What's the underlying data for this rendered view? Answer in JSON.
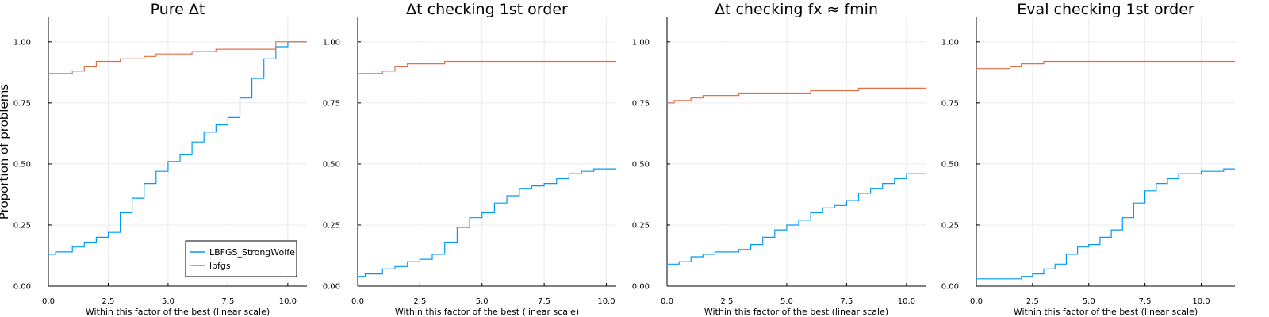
{
  "chart_data": [
    {
      "type": "line",
      "title": "Pure Δt",
      "ylabel": "Proportion of problems",
      "xlabel": "Within this factor of the best (linear scale)",
      "xlim": [
        0,
        10.8
      ],
      "ylim": [
        0,
        1.1
      ],
      "xticks": [
        "0.0",
        "2.5",
        "5.0",
        "7.5",
        "10.0"
      ],
      "yticks": [
        "0.00",
        "0.25",
        "0.50",
        "0.75",
        "1.00"
      ],
      "grid": true,
      "legend": "bottom-right",
      "series": [
        {
          "name": "LBFGS_StrongWolfe",
          "x": [
            0,
            0.3,
            1.0,
            1.5,
            2.0,
            2.5,
            3.0,
            3.5,
            4.0,
            4.5,
            5.0,
            5.5,
            6.0,
            6.5,
            7.0,
            7.5,
            8.0,
            8.5,
            9.0,
            9.5,
            10.0,
            10.8
          ],
          "values": [
            0.13,
            0.14,
            0.16,
            0.18,
            0.2,
            0.22,
            0.3,
            0.36,
            0.42,
            0.47,
            0.51,
            0.54,
            0.59,
            0.63,
            0.66,
            0.69,
            0.77,
            0.85,
            0.93,
            0.98,
            1.0,
            1.0
          ]
        },
        {
          "name": "lbfgs",
          "x": [
            0,
            0.5,
            1.0,
            1.5,
            2.0,
            3.0,
            4.0,
            4.5,
            6.0,
            7.0,
            8.5,
            9.5,
            10.8
          ],
          "values": [
            0.87,
            0.87,
            0.88,
            0.9,
            0.92,
            0.93,
            0.94,
            0.95,
            0.96,
            0.97,
            0.97,
            1.0,
            1.0
          ]
        }
      ]
    },
    {
      "type": "line",
      "title": "Δt checking 1st order",
      "xlabel": "Within this factor of the best (linear scale)",
      "xlim": [
        0,
        10.4
      ],
      "ylim": [
        0,
        1.1
      ],
      "xticks": [
        "0.0",
        "2.5",
        "5.0",
        "7.5",
        "10.0"
      ],
      "yticks": [
        "0.00",
        "0.25",
        "0.50",
        "0.75",
        "1.00"
      ],
      "grid": true,
      "series": [
        {
          "name": "LBFGS_StrongWolfe",
          "x": [
            0,
            0.3,
            1.0,
            1.5,
            2.0,
            2.5,
            3.0,
            3.5,
            4.0,
            4.5,
            5.0,
            5.5,
            6.0,
            6.5,
            7.0,
            7.5,
            8.0,
            8.5,
            9.0,
            9.5,
            10.4
          ],
          "values": [
            0.04,
            0.05,
            0.07,
            0.08,
            0.1,
            0.11,
            0.13,
            0.18,
            0.24,
            0.28,
            0.3,
            0.34,
            0.37,
            0.4,
            0.41,
            0.42,
            0.44,
            0.46,
            0.47,
            0.48,
            0.48
          ]
        },
        {
          "name": "lbfgs",
          "x": [
            0,
            0.5,
            1.0,
            1.5,
            2.0,
            3.5,
            10.4
          ],
          "values": [
            0.87,
            0.87,
            0.88,
            0.9,
            0.91,
            0.92,
            0.92
          ]
        }
      ]
    },
    {
      "type": "line",
      "title": "Δt checking fx ≈ fmin",
      "xlabel": "Within this factor of the best (linear scale)",
      "xlim": [
        0,
        10.8
      ],
      "ylim": [
        0,
        1.1
      ],
      "xticks": [
        "0.0",
        "2.5",
        "5.0",
        "7.5",
        "10.0"
      ],
      "yticks": [
        "0.00",
        "0.25",
        "0.50",
        "0.75",
        "1.00"
      ],
      "grid": true,
      "series": [
        {
          "name": "LBFGS_StrongWolfe",
          "x": [
            0,
            0.5,
            1.0,
            1.5,
            2.0,
            3.0,
            3.5,
            4.0,
            4.5,
            5.0,
            5.5,
            6.0,
            6.5,
            7.0,
            7.5,
            8.0,
            8.5,
            9.0,
            9.5,
            10.0,
            10.8
          ],
          "values": [
            0.09,
            0.1,
            0.12,
            0.13,
            0.14,
            0.15,
            0.17,
            0.2,
            0.23,
            0.25,
            0.27,
            0.3,
            0.32,
            0.33,
            0.35,
            0.38,
            0.4,
            0.42,
            0.44,
            0.46,
            0.46
          ]
        },
        {
          "name": "lbfgs",
          "x": [
            0,
            0.3,
            1.0,
            1.5,
            3.0,
            4.5,
            6.0,
            8.0,
            10.8
          ],
          "values": [
            0.75,
            0.76,
            0.77,
            0.78,
            0.79,
            0.79,
            0.8,
            0.81,
            0.81
          ]
        }
      ]
    },
    {
      "type": "line",
      "title": "Eval checking 1st order",
      "xlabel": "Within this factor of the best (linear scale)",
      "xlim": [
        0,
        11.5
      ],
      "ylim": [
        0,
        1.1
      ],
      "xticks": [
        "0.0",
        "2.5",
        "5.0",
        "7.5",
        "10.0"
      ],
      "yticks": [
        "0.00",
        "0.25",
        "0.50",
        "0.75",
        "1.00"
      ],
      "grid": true,
      "series": [
        {
          "name": "LBFGS_StrongWolfe",
          "x": [
            0,
            2.0,
            2.5,
            3.0,
            3.5,
            4.0,
            4.5,
            5.0,
            5.5,
            6.0,
            6.5,
            7.0,
            7.5,
            8.0,
            8.5,
            9.0,
            10.0,
            11.0,
            11.5
          ],
          "values": [
            0.03,
            0.04,
            0.05,
            0.07,
            0.09,
            0.13,
            0.16,
            0.17,
            0.2,
            0.23,
            0.28,
            0.34,
            0.39,
            0.42,
            0.44,
            0.46,
            0.47,
            0.48,
            0.48
          ]
        },
        {
          "name": "lbfgs",
          "x": [
            0,
            0.8,
            1.5,
            2.0,
            3.0,
            11.5
          ],
          "values": [
            0.89,
            0.89,
            0.9,
            0.91,
            0.92,
            0.92
          ]
        }
      ]
    }
  ],
  "colors": {
    "LBFGS_StrongWolfe": "#009af9",
    "lbfgs": "#e26f46",
    "grid": "#ebebeb",
    "axis": "#000000"
  }
}
